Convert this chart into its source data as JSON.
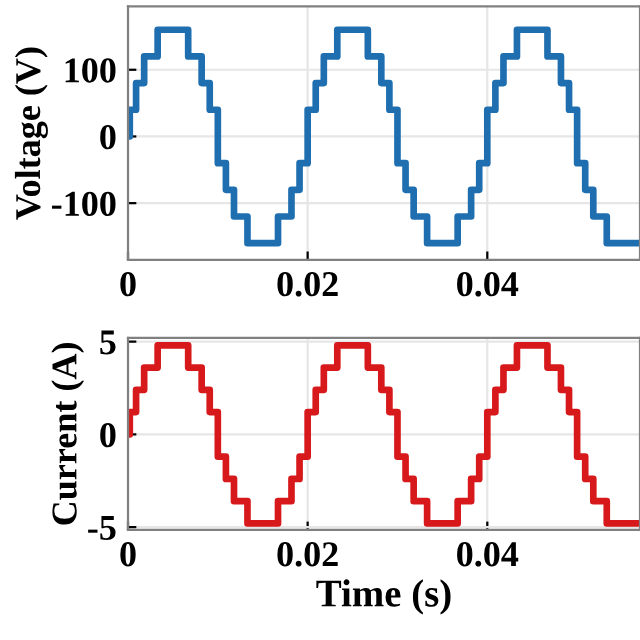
{
  "chart_data": [
    {
      "type": "step",
      "ylabel": "Voltage (V)",
      "xlim": [
        0,
        0.057
      ],
      "ylim": [
        -185,
        195
      ],
      "xticks": [
        0,
        0.02,
        0.04
      ],
      "yticks": [
        -100,
        0,
        100
      ],
      "grid": true,
      "series": [
        {
          "color": "#1f6fb0",
          "x": [
            0,
            0.0002,
            0.0009,
            0.0018,
            0.0033,
            0.0067,
            0.0082,
            0.0091,
            0.01,
            0.0109,
            0.0118,
            0.0133,
            0.0167,
            0.0182,
            0.0191,
            0.02,
            0.0209,
            0.0218,
            0.0233,
            0.0267,
            0.0282,
            0.0291,
            0.03,
            0.0309,
            0.0318,
            0.0333,
            0.0367,
            0.0382,
            0.0391,
            0.04,
            0.0409,
            0.0418,
            0.0433,
            0.0467,
            0.0482,
            0.0491,
            0.05,
            0.0509,
            0.0518,
            0.0533,
            0.057
          ],
          "values": [
            0,
            40,
            80,
            120,
            160,
            120,
            80,
            40,
            -40,
            -80,
            -120,
            -160,
            -120,
            -80,
            -40,
            40,
            80,
            120,
            160,
            120,
            80,
            40,
            -40,
            -80,
            -120,
            -160,
            -120,
            -80,
            -40,
            40,
            80,
            120,
            160,
            120,
            80,
            40,
            -40,
            -80,
            -120,
            -160,
            -160
          ]
        }
      ]
    },
    {
      "type": "step",
      "xlabel": "Time (s)",
      "ylabel": "Current (A)",
      "xlim": [
        0,
        0.057
      ],
      "ylim": [
        -5.15,
        5.2
      ],
      "xticks": [
        0,
        0.02,
        0.04
      ],
      "yticks": [
        -5,
        0,
        5
      ],
      "grid": true,
      "series": [
        {
          "color": "#d7191c",
          "x": [
            0,
            0.0002,
            0.0009,
            0.0018,
            0.0033,
            0.0067,
            0.0082,
            0.0091,
            0.01,
            0.0109,
            0.0118,
            0.0133,
            0.0167,
            0.0182,
            0.0191,
            0.02,
            0.0209,
            0.0218,
            0.0233,
            0.0267,
            0.0282,
            0.0291,
            0.03,
            0.0309,
            0.0318,
            0.0333,
            0.0367,
            0.0382,
            0.0391,
            0.04,
            0.0409,
            0.0418,
            0.0433,
            0.0467,
            0.0482,
            0.0491,
            0.05,
            0.0509,
            0.0518,
            0.0533,
            0.057
          ],
          "values": [
            0,
            1.2,
            2.4,
            3.6,
            4.8,
            3.6,
            2.4,
            1.2,
            -1.2,
            -2.4,
            -3.6,
            -4.8,
            -3.6,
            -2.4,
            -1.2,
            1.2,
            2.4,
            3.6,
            4.8,
            3.6,
            2.4,
            1.2,
            -1.2,
            -2.4,
            -3.6,
            -4.8,
            -3.6,
            -2.4,
            -1.2,
            1.2,
            2.4,
            3.6,
            4.8,
            3.6,
            2.4,
            1.2,
            -1.2,
            -2.4,
            -3.6,
            -4.8,
            -4.8
          ]
        }
      ]
    }
  ]
}
